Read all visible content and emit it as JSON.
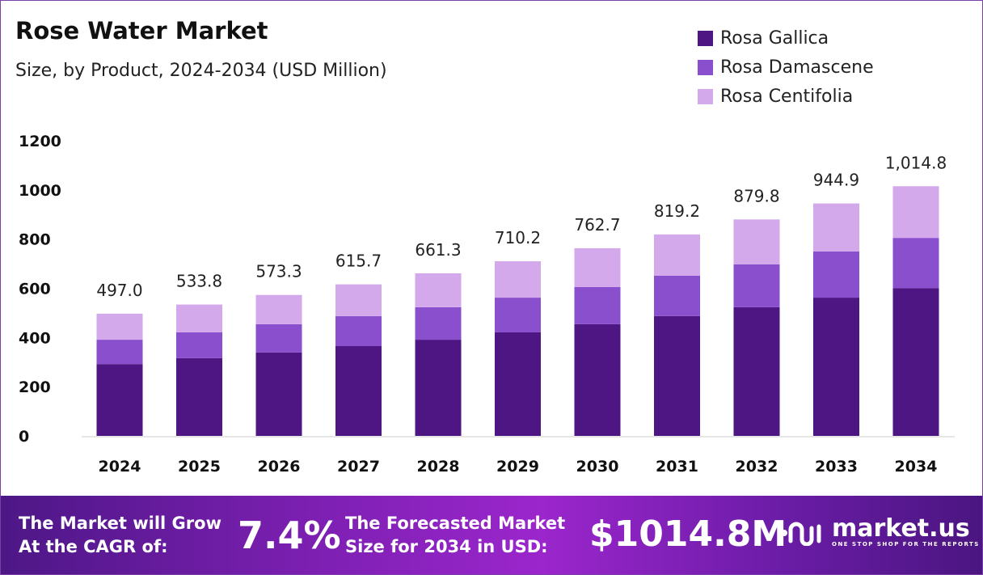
{
  "chart_data": {
    "type": "bar",
    "stacked": true,
    "title": "Rose Water Market",
    "subtitle": "Size, by Product, 2024-2034 (USD Million)",
    "categories": [
      "2024",
      "2025",
      "2026",
      "2027",
      "2028",
      "2029",
      "2030",
      "2031",
      "2032",
      "2033",
      "2034"
    ],
    "series": [
      {
        "name": "Rosa Gallica",
        "color": "#4e1683",
        "values": [
          292,
          316,
          339,
          365,
          391,
          421,
          454,
          487,
          523,
          562,
          601
        ]
      },
      {
        "name": "Rosa Damascene",
        "color": "#8a4fcc",
        "values": [
          99,
          105,
          115,
          122,
          132,
          141,
          151,
          164,
          174,
          188,
          204
        ]
      },
      {
        "name": "Rosa Centifolia",
        "color": "#d4a9ec",
        "values": [
          106,
          113,
          119,
          129,
          138,
          148,
          158,
          168,
          183,
          195,
          210
        ]
      }
    ],
    "totals": [
      "497.0",
      "533.8",
      "573.3",
      "615.7",
      "661.3",
      "710.2",
      "762.7",
      "819.2",
      "879.8",
      "944.9",
      "1,014.8"
    ],
    "total_values": [
      497.0,
      533.8,
      573.3,
      615.7,
      661.3,
      710.2,
      762.7,
      819.2,
      879.8,
      944.9,
      1014.8
    ],
    "yticks": [
      "0",
      "200",
      "400",
      "600",
      "800",
      "1000",
      "1200"
    ],
    "ylim": [
      0,
      1200
    ],
    "grid": false,
    "legend": "top-right"
  },
  "footer": {
    "cagr_label": [
      "The Market will Grow",
      "At the CAGR of:"
    ],
    "cagr_value": "7.4%",
    "forecast_label": [
      "The Forecasted Market",
      "Size for 2034 in USD:"
    ],
    "forecast_value": "$1014.8M",
    "brand": "market.us",
    "tagline": "ONE STOP SHOP FOR THE REPORTS"
  }
}
